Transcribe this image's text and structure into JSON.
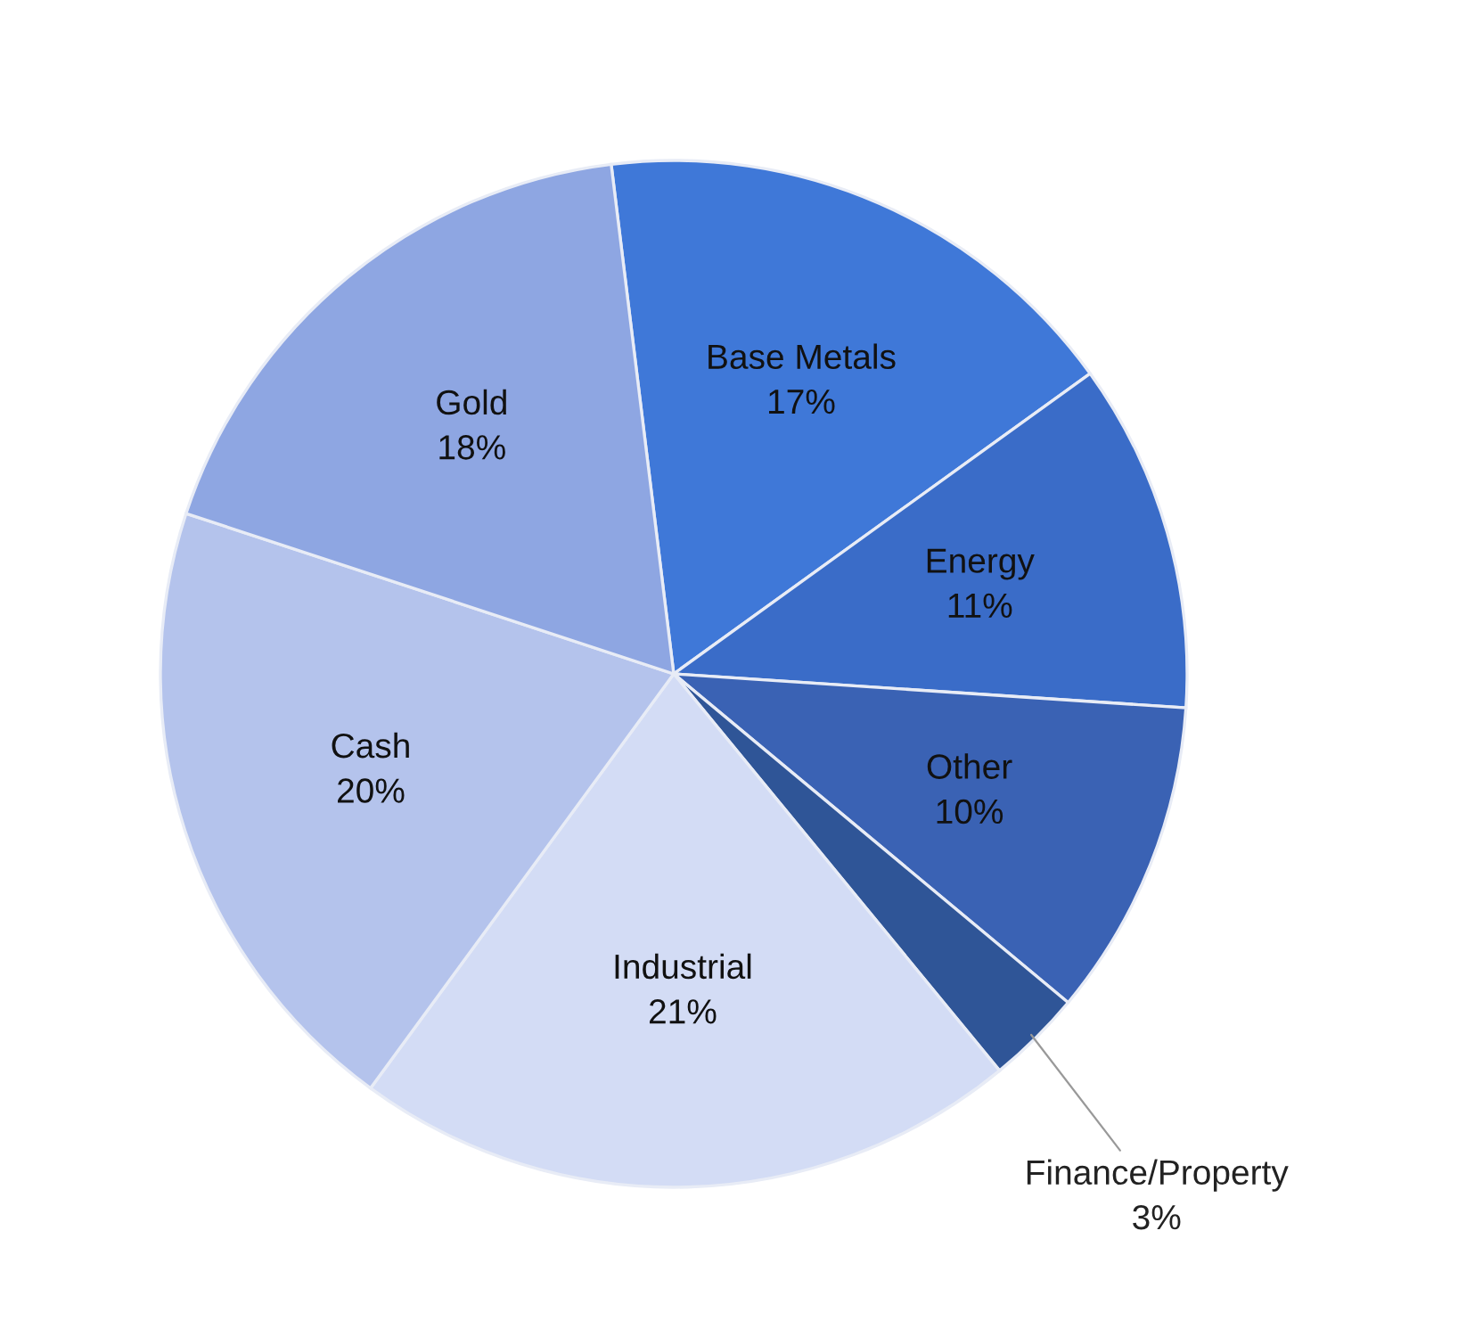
{
  "chart_data": {
    "type": "pie",
    "categories": [
      "Base Metals",
      "Energy",
      "Other",
      "Finance/Property",
      "Industrial",
      "Cash",
      "Gold"
    ],
    "values": [
      17,
      11,
      10,
      3,
      21,
      20,
      18
    ],
    "value_labels": [
      "17%",
      "11%",
      "10%",
      "3%",
      "21%",
      "20%",
      "18%"
    ],
    "colors": [
      "#3f78d8",
      "#3a6cc8",
      "#3a62b4",
      "#2f5597",
      "#d3dcf5",
      "#b4c3ec",
      "#8ea6e2"
    ]
  }
}
